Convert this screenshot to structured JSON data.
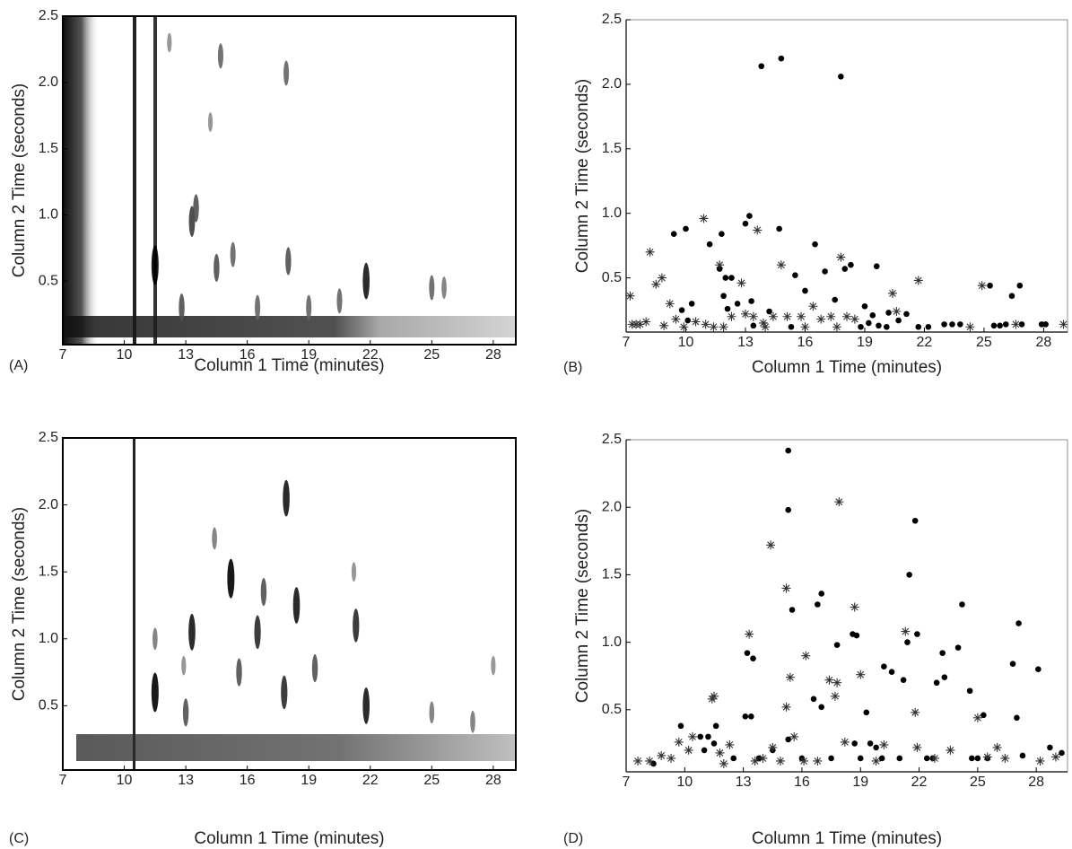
{
  "chart_data": [
    {
      "type": "peaks",
      "panel_label": "(A)",
      "x_label": "Column 1 Time (minutes)",
      "y_label": "Column 2 Time (seconds)",
      "xlim": [
        7,
        29.1
      ],
      "ylim": [
        0.02,
        2.5
      ],
      "xticks": [
        7,
        10,
        13,
        16,
        19,
        22,
        25,
        28
      ],
      "yticks": [
        0.5,
        {
          "value": 1,
          "label": "1.0"
        },
        1.5,
        {
          "value": 2,
          "label": "2.0"
        },
        2.5
      ],
      "x": [
        11.5,
        13.3,
        13.5,
        14.7,
        14.5,
        17.9,
        18,
        21.8,
        25,
        25.6,
        15.3,
        12.8,
        16.5,
        19,
        20.5,
        12.2,
        14.2
      ],
      "y": [
        0.62,
        0.95,
        1.05,
        2.2,
        0.6,
        2.07,
        0.65,
        0.5,
        0.45,
        0.45,
        0.7,
        0.3,
        0.3,
        0.3,
        0.35,
        2.3,
        1.7
      ],
      "values": [
        1,
        0.7,
        0.6,
        0.5,
        0.6,
        0.5,
        0.6,
        0.9,
        0.5,
        0.4,
        0.5,
        0.6,
        0.5,
        0.5,
        0.5,
        0.3,
        0.3
      ]
    },
    {
      "type": "scatter",
      "panel_label": "(B)",
      "x_label": "Column 1 Time (minutes)",
      "y_label": "Column 2 Time (seconds)",
      "xlim": [
        7,
        29.2
      ],
      "ylim": [
        0.08,
        2.5
      ],
      "xticks": [
        7,
        10,
        13,
        16,
        19,
        22,
        25,
        28
      ],
      "yticks": [
        0.5,
        {
          "value": 1,
          "label": "1.0"
        },
        1.5,
        {
          "value": 2,
          "label": "2.0"
        },
        2.5
      ],
      "series": [
        {
          "marker": "dot",
          "color": "#000000",
          "x": [
            9.4,
            10,
            11.2,
            11.8,
            13,
            13.2,
            13.8,
            14.8,
            17.8,
            14.7,
            16.5,
            17,
            18,
            18.3,
            19.6,
            15.5,
            16,
            17.5,
            12,
            12.3,
            11.7,
            11.9,
            12.6,
            13.3,
            10.3,
            9.8,
            10.1,
            12.1,
            14.2,
            19,
            20.2,
            21.1,
            20.7,
            19.4,
            18.8,
            19.2,
            19.7,
            20.1,
            21.7,
            22.2,
            23,
            23.4,
            23.8,
            25.3,
            26.8,
            26.4,
            25.5,
            25.8,
            26.1,
            26.9,
            27.9,
            28.1,
            15.3,
            13.4
          ],
          "y": [
            0.84,
            0.88,
            0.76,
            0.84,
            0.92,
            0.98,
            2.14,
            2.2,
            2.06,
            0.88,
            0.76,
            0.55,
            0.57,
            0.6,
            0.59,
            0.52,
            0.4,
            0.33,
            0.5,
            0.5,
            0.57,
            0.36,
            0.3,
            0.32,
            0.3,
            0.25,
            0.17,
            0.26,
            0.24,
            0.28,
            0.23,
            0.22,
            0.17,
            0.21,
            0.12,
            0.15,
            0.13,
            0.12,
            0.12,
            0.12,
            0.14,
            0.14,
            0.14,
            0.44,
            0.44,
            0.36,
            0.13,
            0.13,
            0.14,
            0.14,
            0.14,
            0.14,
            0.12,
            0.13
          ]
        },
        {
          "marker": "star",
          "color": "#333333",
          "x": [
            7.2,
            7.3,
            7.7,
            8,
            8.2,
            8.5,
            8.8,
            9.2,
            9.5,
            9.9,
            10.5,
            10.9,
            11,
            11.4,
            11.7,
            11.9,
            12.3,
            12.8,
            13,
            13.4,
            13.6,
            13.9,
            14.4,
            14.8,
            15.1,
            15.8,
            16.4,
            16.8,
            17.3,
            17.8,
            18.1,
            18.5,
            20.4,
            20.6,
            21.7,
            24.3,
            24.9,
            26.6,
            29,
            7.5,
            8.9,
            14,
            16,
            17.6
          ],
          "y": [
            0.36,
            0.14,
            0.14,
            0.16,
            0.7,
            0.45,
            0.5,
            0.3,
            0.18,
            0.12,
            0.16,
            0.96,
            0.14,
            0.12,
            0.6,
            0.12,
            0.2,
            0.46,
            0.22,
            0.2,
            0.87,
            0.15,
            0.2,
            0.6,
            0.2,
            0.2,
            0.28,
            0.18,
            0.2,
            0.66,
            0.2,
            0.18,
            0.38,
            0.24,
            0.48,
            0.12,
            0.44,
            0.14,
            0.14,
            0.14,
            0.13,
            0.12,
            0.12,
            0.12
          ]
        }
      ]
    },
    {
      "type": "peaks",
      "panel_label": "(C)",
      "x_label": "Column 1 Time (minutes)",
      "y_label": "Column 2 Time (seconds)",
      "xlim": [
        7,
        29.1
      ],
      "ylim": [
        0.02,
        2.5
      ],
      "xticks": [
        7,
        10,
        13,
        16,
        19,
        22,
        25,
        28
      ],
      "yticks": [
        0.5,
        {
          "value": 1,
          "label": "1.0"
        },
        1.5,
        {
          "value": 2,
          "label": "2.0"
        },
        2.5
      ],
      "x": [
        11.5,
        11.5,
        13.3,
        13,
        14.4,
        15.2,
        15.6,
        16.5,
        16.8,
        17.9,
        17.8,
        18.4,
        19.3,
        21.3,
        21.8,
        12.9,
        21.2,
        25,
        27,
        28
      ],
      "y": [
        0.6,
        1.0,
        1.05,
        0.45,
        1.75,
        1.45,
        0.75,
        1.05,
        1.35,
        2.05,
        0.6,
        1.25,
        0.78,
        1.1,
        0.5,
        0.8,
        1.5,
        0.45,
        0.38,
        0.8
      ],
      "values": [
        1,
        0.4,
        0.9,
        0.6,
        0.4,
        1,
        0.6,
        0.8,
        0.6,
        0.9,
        0.8,
        0.9,
        0.6,
        0.8,
        0.9,
        0.3,
        0.3,
        0.4,
        0.4,
        0.3
      ]
    },
    {
      "type": "scatter",
      "panel_label": "(D)",
      "x_label": "Column 1 Time (minutes)",
      "y_label": "Column 2 Time (seconds)",
      "xlim": [
        7,
        29.6
      ],
      "ylim": [
        0.04,
        2.5
      ],
      "xticks": [
        7,
        10,
        13,
        16,
        19,
        22,
        25,
        28
      ],
      "yticks": [
        0.5,
        {
          "value": 1,
          "label": "1.0"
        },
        1.5,
        {
          "value": 2,
          "label": "2.0"
        },
        2.5
      ],
      "series": [
        {
          "marker": "dot",
          "color": "#000000",
          "x": [
            8.4,
            9.8,
            10.8,
            11.2,
            11.6,
            11.5,
            11,
            12.5,
            13.2,
            13.5,
            13.1,
            13.4,
            15.3,
            15.3,
            15.5,
            15.3,
            16.8,
            17,
            16.6,
            17,
            17.8,
            18.6,
            18.8,
            19.3,
            18.7,
            19.5,
            19.8,
            20.2,
            20.6,
            21.2,
            21.5,
            21.4,
            21.8,
            21.9,
            23.2,
            22.9,
            23.3,
            24.2,
            24,
            24.6,
            25.3,
            26.8,
            27.1,
            27,
            27.3,
            28.1,
            28.7,
            29.3,
            24.7,
            25,
            25.5,
            22.4,
            22.7,
            19,
            17.5,
            16,
            14.5,
            13.8,
            20.1,
            21
          ],
          "y": [
            0.1,
            0.38,
            0.3,
            0.3,
            0.38,
            0.25,
            0.2,
            0.14,
            0.92,
            0.88,
            0.45,
            0.45,
            2.42,
            1.98,
            1.24,
            0.28,
            1.28,
            1.36,
            0.58,
            0.52,
            0.98,
            1.06,
            1.05,
            0.48,
            0.25,
            0.25,
            0.22,
            0.82,
            0.78,
            0.72,
            1.5,
            1.0,
            1.9,
            1.06,
            0.92,
            0.7,
            0.74,
            1.28,
            0.96,
            0.64,
            0.46,
            0.84,
            1.14,
            0.44,
            0.16,
            0.8,
            0.22,
            0.18,
            0.14,
            0.14,
            0.14,
            0.14,
            0.14,
            0.14,
            0.14,
            0.14,
            0.2,
            0.14,
            0.14,
            0.14
          ]
        },
        {
          "marker": "star",
          "color": "#333333",
          "x": [
            7.6,
            8.2,
            8.8,
            9.3,
            9.7,
            10.2,
            10.4,
            11.4,
            11.5,
            11.8,
            12,
            12.3,
            13.3,
            13.6,
            14,
            14.4,
            14.5,
            15.2,
            15.2,
            15.4,
            15.6,
            16.2,
            16.8,
            17.4,
            17.7,
            17.8,
            17.9,
            18.2,
            18.7,
            19,
            19.8,
            20.2,
            21.3,
            21.8,
            21.9,
            22.8,
            23.6,
            25,
            25.5,
            26,
            26.4,
            28.2,
            29,
            14.9,
            16.1
          ],
          "y": [
            0.12,
            0.12,
            0.16,
            0.14,
            0.26,
            0.2,
            0.3,
            0.58,
            0.6,
            0.18,
            0.1,
            0.24,
            1.06,
            0.12,
            0.14,
            1.72,
            0.22,
            1.4,
            0.52,
            0.74,
            0.3,
            0.9,
            0.12,
            0.72,
            0.6,
            0.7,
            2.04,
            0.26,
            1.26,
            0.76,
            0.12,
            0.24,
            1.08,
            0.48,
            0.22,
            0.14,
            0.2,
            0.44,
            0.15,
            0.22,
            0.14,
            0.12,
            0.15,
            0.12,
            0.12
          ]
        }
      ]
    }
  ]
}
